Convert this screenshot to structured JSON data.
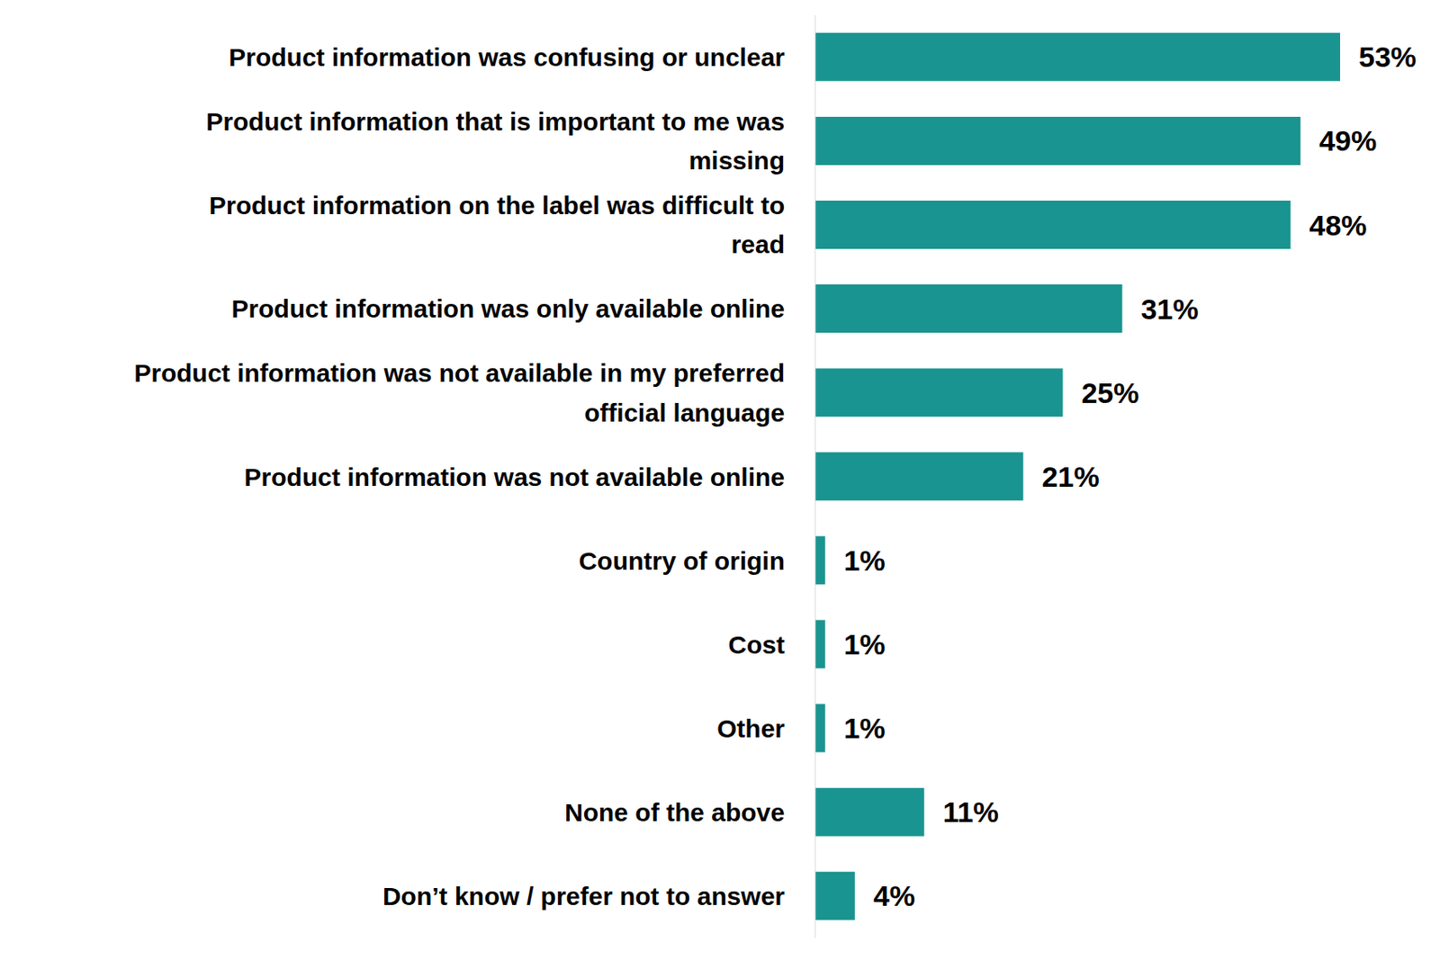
{
  "chart_data": {
    "type": "bar",
    "orientation": "horizontal",
    "categories": [
      "Product information was confusing or unclear",
      "Product information that is important to me was missing",
      "Product information on the label was difficult to read",
      "Product information was only available online",
      "Product information was not available in my preferred official language",
      "Product information was not available online",
      "Country of origin",
      "Cost",
      "Other",
      "None of the above",
      "Don’t know / prefer not to answer"
    ],
    "values": [
      53,
      49,
      48,
      31,
      25,
      21,
      1,
      1,
      1,
      11,
      4
    ],
    "value_labels": [
      "53%",
      "49%",
      "48%",
      "31%",
      "25%",
      "21%",
      "1%",
      "1%",
      "1%",
      "11%",
      "4%"
    ],
    "color": "#1a9490",
    "data_labels": true,
    "tick_labels": "y"
  }
}
